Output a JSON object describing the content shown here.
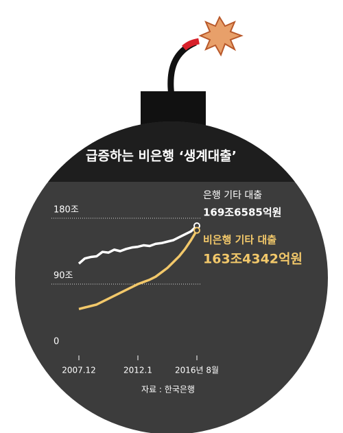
{
  "chart_data": {
    "type": "line",
    "title": "급증하는 비은행 ‘생계대출’",
    "source": "자료 : 한국은행",
    "categories": [
      "2007.12",
      null,
      null,
      null,
      null,
      null,
      null,
      null,
      null,
      null,
      "2012.1",
      null,
      null,
      null,
      null,
      null,
      null,
      null,
      null,
      null,
      "2016년 8월"
    ],
    "series": [
      {
        "name": "은행 기타 대출",
        "color": "#ffffff",
        "values": [
          118,
          125,
          127,
          128,
          134,
          133,
          137,
          135,
          138,
          140,
          141,
          143,
          142,
          145,
          146,
          148,
          150,
          154,
          158,
          162,
          169.6585
        ],
        "value_labels": [
          null,
          null,
          null,
          null,
          null,
          null,
          null,
          null,
          null,
          null,
          null,
          null,
          null,
          null,
          null,
          null,
          null,
          null,
          null,
          null,
          "169조6585억원"
        ]
      },
      {
        "name": "비은행 기타 대출",
        "color": "#f2c86a",
        "values": [
          56,
          58,
          60,
          62,
          66,
          70,
          74,
          78,
          82,
          86,
          90,
          93,
          96,
          100,
          106,
          112,
          120,
          128,
          138,
          150,
          163.4342
        ],
        "value_labels": [
          null,
          null,
          null,
          null,
          null,
          null,
          null,
          null,
          null,
          null,
          null,
          null,
          null,
          null,
          null,
          null,
          null,
          null,
          null,
          null,
          "163조4342억원"
        ]
      }
    ],
    "ylim": [
      0,
      180
    ],
    "yticks": [
      0,
      {
        "value": 90,
        "label": "90조"
      },
      {
        "value": 180,
        "label": "180조"
      }
    ],
    "grid": true
  }
}
